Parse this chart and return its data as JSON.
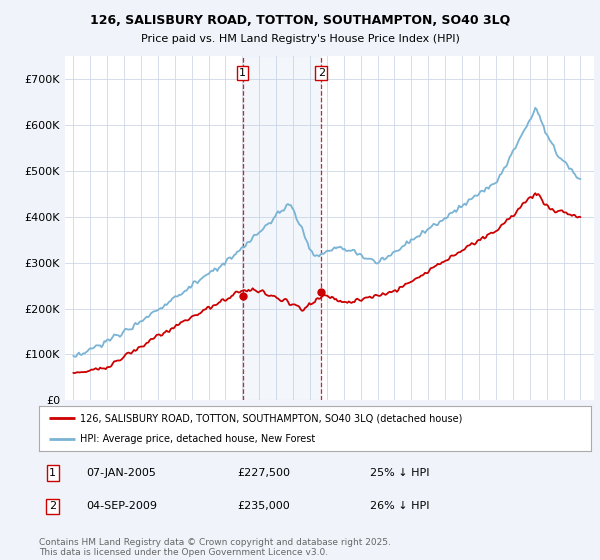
{
  "title": "126, SALISBURY ROAD, TOTTON, SOUTHAMPTON, SO40 3LQ",
  "subtitle": "Price paid vs. HM Land Registry's House Price Index (HPI)",
  "ylim": [
    0,
    750000
  ],
  "yticks": [
    0,
    100000,
    200000,
    300000,
    400000,
    500000,
    600000,
    700000
  ],
  "ytick_labels": [
    "£0",
    "£100K",
    "£200K",
    "£300K",
    "£400K",
    "£500K",
    "£600K",
    "£700K"
  ],
  "hpi_color": "#7ab3d4",
  "sold_color": "#cc0000",
  "marker1_x": 2005.02,
  "marker2_x": 2009.67,
  "legend_line1": "126, SALISBURY ROAD, TOTTON, SOUTHAMPTON, SO40 3LQ (detached house)",
  "legend_line2": "HPI: Average price, detached house, New Forest",
  "footnote": "Contains HM Land Registry data © Crown copyright and database right 2025.\nThis data is licensed under the Open Government Licence v3.0.",
  "background_color": "#f0f4fa",
  "plot_bg_color": "#ffffff"
}
